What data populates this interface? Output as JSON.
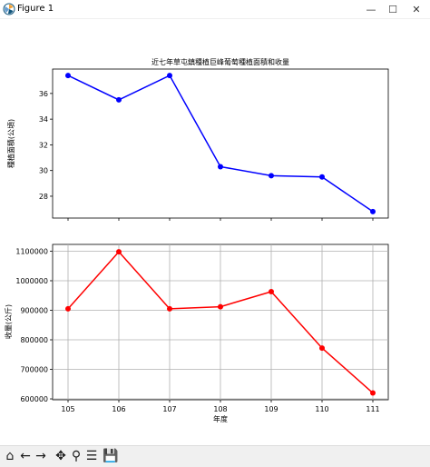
{
  "window": {
    "title": "Figure 1"
  },
  "window_controls": {
    "minimize": "—",
    "maximize": "☐",
    "close": "✕"
  },
  "toolbar": {
    "icons": [
      "home-icon",
      "back-arrow-icon",
      "forward-arrow-icon",
      "pan-icon",
      "zoom-icon",
      "configure-subplots-icon",
      "save-icon"
    ],
    "glyphs": {
      "home": "⌂",
      "back": "←",
      "forward": "→",
      "pan": "✥",
      "zoom": "⚲",
      "configure": "☰",
      "save": "💾"
    }
  },
  "colors": {
    "top_series": "#0000ff",
    "bottom_series": "#ff0000",
    "grid": "#b0b0b0"
  },
  "chart_data": [
    {
      "type": "line",
      "title": "近七年草屯鎮種植巨峰葡萄種植面積和收量",
      "xlabel": "",
      "ylabel": "種植面積(公頃)",
      "x": [
        105,
        106,
        107,
        108,
        109,
        110,
        111
      ],
      "series": [
        {
          "values": [
            37.4,
            35.5,
            37.4,
            30.3,
            29.6,
            29.5,
            26.8
          ]
        }
      ],
      "ylim": [
        26.3,
        37.9
      ],
      "yticks": [
        28,
        30,
        32,
        34,
        36
      ],
      "grid": false,
      "marker": "circle"
    },
    {
      "type": "line",
      "title": "",
      "xlabel": "年度",
      "ylabel": "收量(公斤)",
      "x": [
        105,
        106,
        107,
        108,
        109,
        110,
        111
      ],
      "xticks": [
        "105",
        "106",
        "107",
        "108",
        "109",
        "110",
        "111"
      ],
      "series": [
        {
          "values": [
            905000,
            1098000,
            905000,
            912000,
            963000,
            772000,
            620000
          ]
        }
      ],
      "ylim": [
        597000,
        1123000
      ],
      "yticks": [
        600000,
        700000,
        800000,
        900000,
        1000000,
        1100000
      ],
      "grid": true,
      "marker": "circle"
    }
  ]
}
